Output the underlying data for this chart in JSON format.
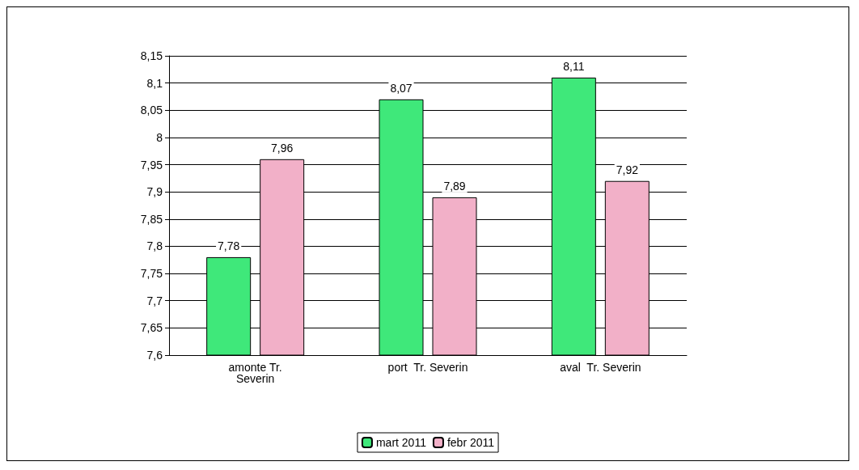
{
  "chart_data": {
    "type": "bar",
    "categories": [
      "amonte Tr.\nSeverin",
      "port  Tr. Severin",
      "aval  Tr. Severin"
    ],
    "series": [
      {
        "name": "mart 2011",
        "color": "#3fe87a",
        "values": [
          7.78,
          8.07,
          8.11
        ],
        "value_labels": [
          "7,78",
          "8,07",
          "8,11"
        ]
      },
      {
        "name": "febr 2011",
        "color": "#f2b0c8",
        "values": [
          7.96,
          7.89,
          7.92
        ],
        "value_labels": [
          "7,96",
          "7,89",
          "7,92"
        ]
      }
    ],
    "ylim": [
      7.6,
      8.15
    ],
    "yticks": [
      {
        "value": 7.6,
        "label": "7,6"
      },
      {
        "value": 7.65,
        "label": "7,65"
      },
      {
        "value": 7.7,
        "label": "7,7"
      },
      {
        "value": 7.75,
        "label": "7,75"
      },
      {
        "value": 7.8,
        "label": "7,8"
      },
      {
        "value": 7.85,
        "label": "7,85"
      },
      {
        "value": 7.9,
        "label": "7,9"
      },
      {
        "value": 7.95,
        "label": "7,95"
      },
      {
        "value": 8,
        "label": "8"
      },
      {
        "value": 8.05,
        "label": "8,05"
      },
      {
        "value": 8.1,
        "label": "8,1"
      },
      {
        "value": 8.15,
        "label": "8,15"
      }
    ],
    "grid": true,
    "legend": "bottom"
  }
}
